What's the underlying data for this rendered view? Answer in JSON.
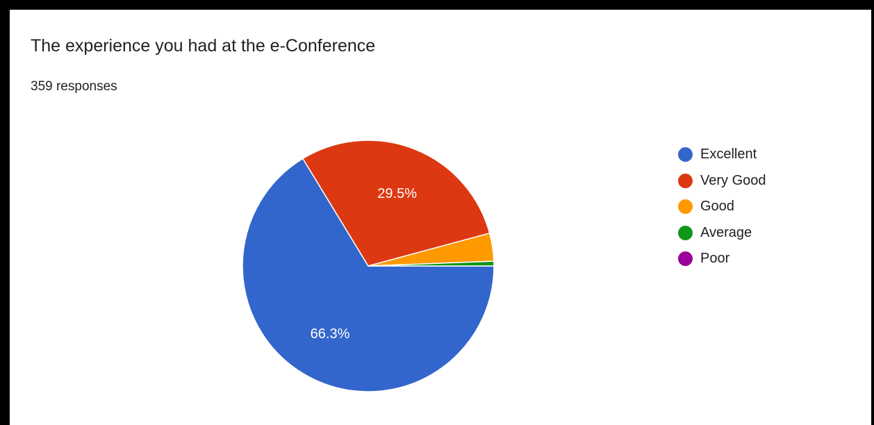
{
  "chart_data": {
    "type": "pie",
    "title": "The experience you had at the e-Conference",
    "subtitle": "359 responses",
    "categories": [
      "Excellent",
      "Very Good",
      "Good",
      "Average",
      "Poor"
    ],
    "values": [
      66.3,
      29.5,
      3.6,
      0.6,
      0.0
    ],
    "value_unit": "%",
    "data_labels": [
      "66.3%",
      "29.5%",
      "",
      "",
      ""
    ],
    "colors": [
      "#3366cc",
      "#dc3912",
      "#ff9900",
      "#109618",
      "#990099"
    ],
    "legend_position": "right",
    "start_direction": "east",
    "slice_order": "clockwise"
  }
}
